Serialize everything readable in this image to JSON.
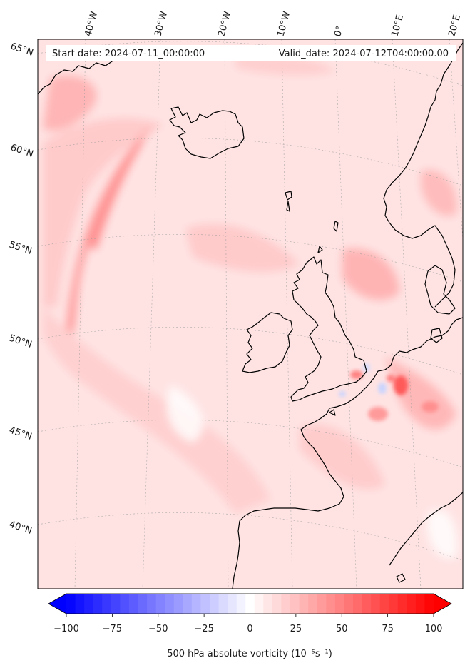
{
  "header": {
    "start_date": "Start date: 2024-07-11_00:00:00",
    "valid_date": "Valid_date: 2024-07-12T04:00:00.00"
  },
  "longitude_labels": [
    "40°W",
    "30°W",
    "20°W",
    "10°W",
    "0°",
    "10°E",
    "20°E"
  ],
  "latitude_labels": [
    "65°N",
    "60°N",
    "55°N",
    "50°N",
    "45°N",
    "40°N"
  ],
  "colorbar": {
    "ticks": [
      -100,
      -75,
      -50,
      -25,
      0,
      25,
      50,
      75,
      100
    ],
    "tick_labels": [
      "−100",
      "−75",
      "−50",
      "−25",
      "0",
      "25",
      "50",
      "75",
      "100"
    ],
    "label": "500 hPa absolute vorticity (10⁻⁵s⁻¹)",
    "range": [
      -100,
      100
    ],
    "levels": 41,
    "cmap_low": "#0000ff",
    "cmap_mid": "#ffffff",
    "cmap_high": "#ff0000"
  },
  "colors": {
    "background_field": "#ffe4e4",
    "coastline": "#000000",
    "gridline": "#9a9a9a"
  }
}
